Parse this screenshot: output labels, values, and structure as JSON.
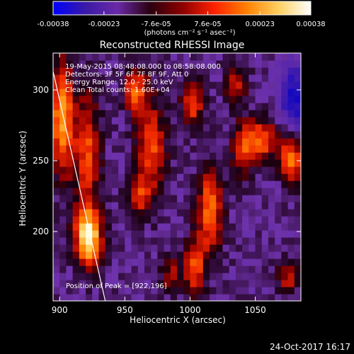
{
  "colorbar": {
    "tick_labels": [
      "-0.00038",
      "-0.00023",
      "-7.6e-05",
      "7.6e-05",
      "0.00023",
      "0.00038"
    ],
    "tick_values": [
      -0.00038,
      -0.00023,
      -7.6e-05,
      7.6e-05,
      0.00023,
      0.00038
    ],
    "range": [
      -0.00038,
      0.00038
    ],
    "units_label": "(photons cm⁻² s⁻¹ asec⁻²)",
    "colors": [
      "#0000ff",
      "#3a1aa6",
      "#6a2aa6",
      "#2a0010",
      "#8a0000",
      "#ff2000",
      "#ff8000",
      "#ffd060",
      "#ffffff"
    ]
  },
  "chart_data": {
    "type": "heatmap",
    "title": "Reconstructed RHESSI Image",
    "xlabel": "Heliocentric X (arcsec)",
    "ylabel": "Heliocentric Y (arcsec)",
    "xlim": [
      895,
      1085
    ],
    "ylim": [
      151,
      326
    ],
    "x_ticks": [
      900,
      950,
      1000,
      1050
    ],
    "y_ticks": [
      200,
      250,
      300
    ],
    "annotations": [
      "19-May-2015 08:48:08.000 to 08:58:08.000",
      "Detectors: 3F 5F 6F 7F 8F 9F, Att 0",
      "Energy Range: 12.0 - 25.0 keV",
      "Clean    Total counts: 1.60E+04"
    ],
    "peak_label": "Position of Peak = [922,196]",
    "peak": [
      922,
      196
    ],
    "limb_line": [
      [
        895,
        313
      ],
      [
        935,
        151
      ]
    ],
    "sources": [
      {
        "x": 922,
        "y": 196,
        "sigma_x": 7,
        "sigma_y": 14,
        "amp": 1.0
      },
      {
        "x": 902,
        "y": 280,
        "sigma_x": 6,
        "sigma_y": 28,
        "amp": 0.78
      },
      {
        "x": 921,
        "y": 256,
        "sigma_x": 7,
        "sigma_y": 30,
        "amp": 0.55
      },
      {
        "x": 958,
        "y": 300,
        "sigma_x": 6,
        "sigma_y": 10,
        "amp": 0.62
      },
      {
        "x": 970,
        "y": 260,
        "sigma_x": 8,
        "sigma_y": 24,
        "amp": 0.55
      },
      {
        "x": 960,
        "y": 225,
        "sigma_x": 6,
        "sigma_y": 10,
        "amp": 0.45
      },
      {
        "x": 1015,
        "y": 215,
        "sigma_x": 7,
        "sigma_y": 20,
        "amp": 0.65
      },
      {
        "x": 1003,
        "y": 175,
        "sigma_x": 6,
        "sigma_y": 14,
        "amp": 0.55
      },
      {
        "x": 1002,
        "y": 292,
        "sigma_x": 6,
        "sigma_y": 12,
        "amp": 0.55
      },
      {
        "x": 1035,
        "y": 305,
        "sigma_x": 6,
        "sigma_y": 10,
        "amp": 0.4
      },
      {
        "x": 1040,
        "y": 258,
        "sigma_x": 6,
        "sigma_y": 14,
        "amp": 0.42
      },
      {
        "x": 1055,
        "y": 265,
        "sigma_x": 9,
        "sigma_y": 10,
        "amp": 0.6
      },
      {
        "x": 1078,
        "y": 252,
        "sigma_x": 6,
        "sigma_y": 12,
        "amp": 0.7
      },
      {
        "x": 1075,
        "y": 168,
        "sigma_x": 6,
        "sigma_y": 8,
        "amp": 0.4
      },
      {
        "x": 985,
        "y": 170,
        "sigma_x": 5,
        "sigma_y": 8,
        "amp": 0.35
      }
    ],
    "negative_region": {
      "x": 1080,
      "y": 295,
      "sigma_x": 8,
      "sigma_y": 18,
      "amp": -0.6
    },
    "grid": false
  },
  "footer": {
    "timestamp": "24-Oct-2017 16:17"
  }
}
